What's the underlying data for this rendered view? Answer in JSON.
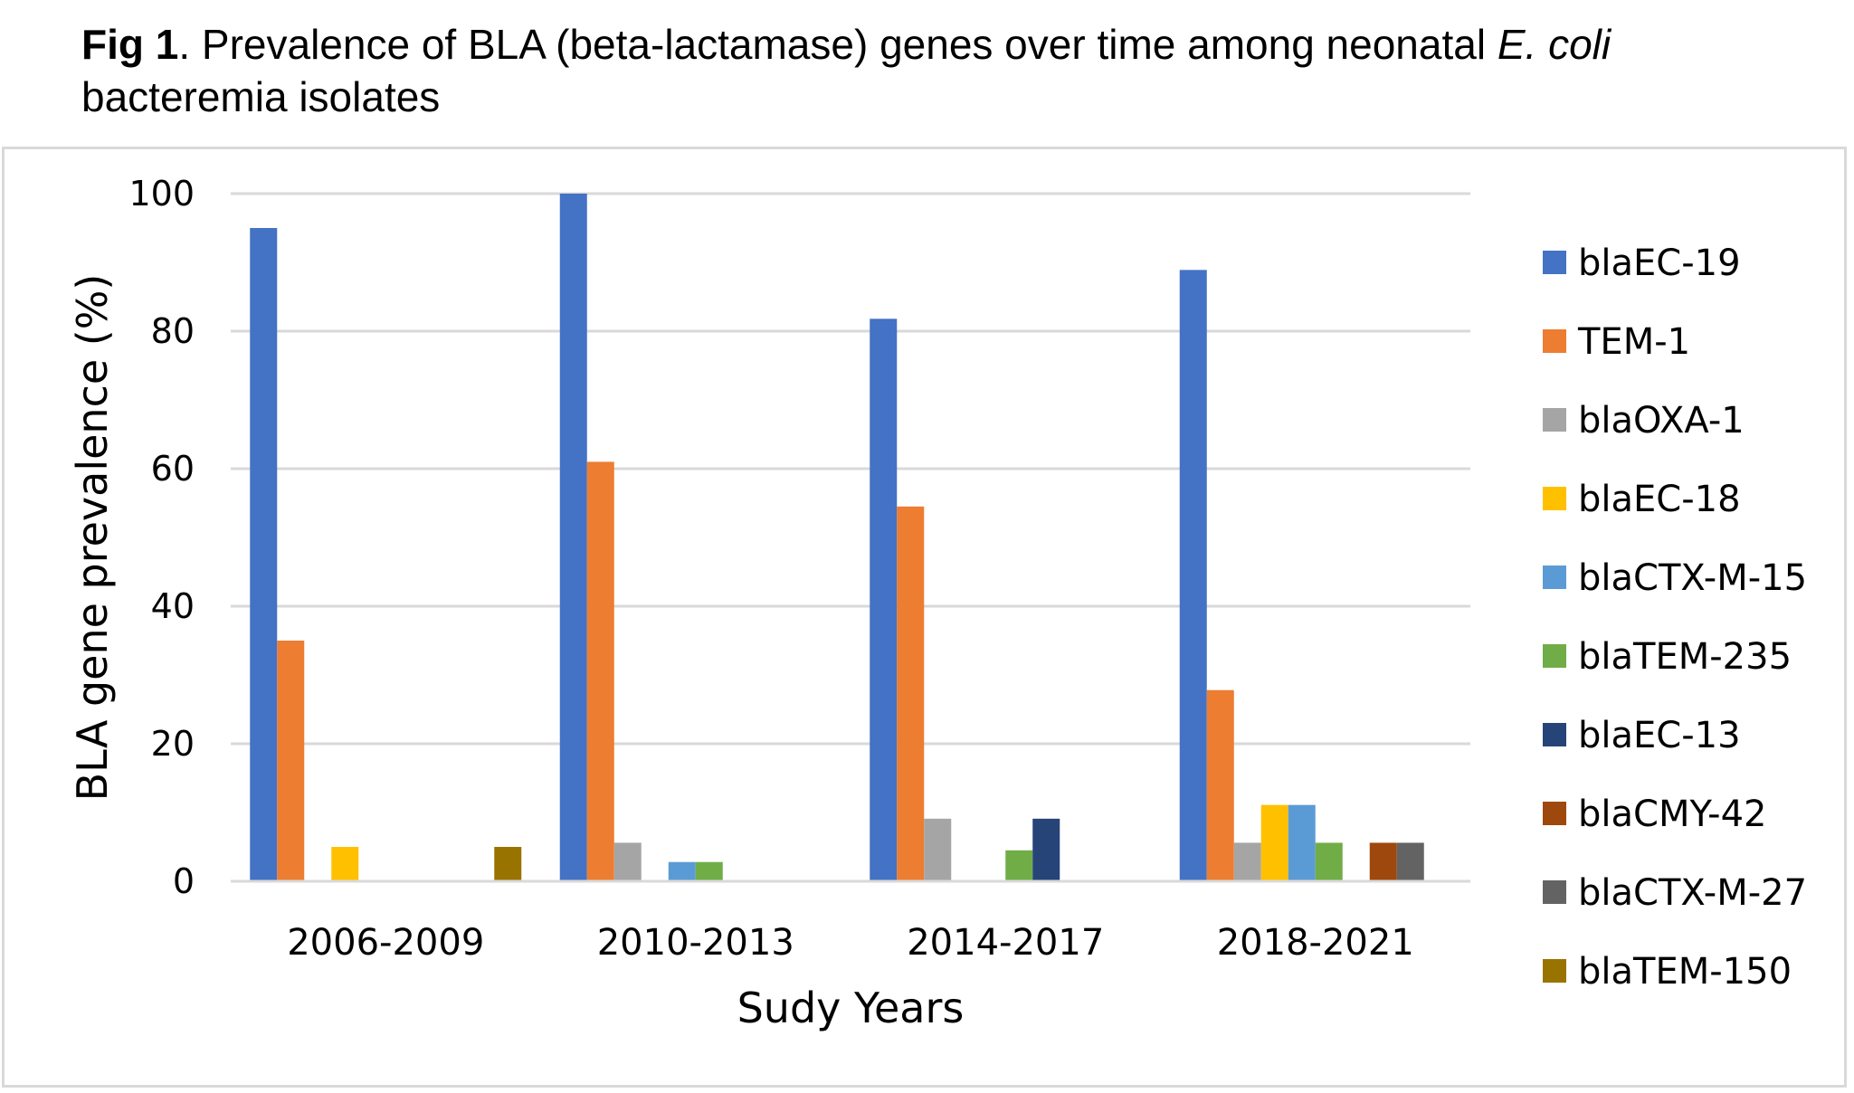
{
  "caption": {
    "label": "Fig 1",
    "text_before": ". Prevalence of BLA (beta-lactamase) genes over time among neonatal ",
    "organism": "E. coli",
    "text_after": " bacteremia isolates"
  },
  "chart_data": {
    "type": "bar",
    "title": "",
    "xlabel": "Sudy Years",
    "ylabel": "BLA gene prevalence (%)",
    "ylim": [
      0,
      100
    ],
    "yticks": [
      0,
      20,
      40,
      60,
      80,
      100
    ],
    "grid": true,
    "legend_position": "right",
    "categories": [
      "2006-2009",
      "2010-2013",
      "2014-2017",
      "2018-2021"
    ],
    "series": [
      {
        "name": "blaEC-19",
        "color": "#4472c4",
        "values": [
          95,
          100,
          81.8,
          88.9
        ]
      },
      {
        "name": "TEM-1",
        "color": "#ed7d31",
        "values": [
          35,
          61,
          54.5,
          27.8
        ]
      },
      {
        "name": "blaOXA-1",
        "color": "#a5a5a5",
        "values": [
          0,
          5.6,
          9.1,
          5.6
        ]
      },
      {
        "name": "blaEC-18",
        "color": "#ffc000",
        "values": [
          5,
          0,
          0,
          11.1
        ]
      },
      {
        "name": "blaCTX-M-15",
        "color": "#5b9bd5",
        "values": [
          0,
          2.8,
          0,
          11.1
        ]
      },
      {
        "name": "blaTEM-235",
        "color": "#70ad47",
        "values": [
          0,
          2.8,
          4.5,
          5.6
        ]
      },
      {
        "name": "blaEC-13",
        "color": "#264478",
        "values": [
          0,
          0,
          9.1,
          0
        ]
      },
      {
        "name": "blaCMY-42",
        "color": "#9e480e",
        "values": [
          0,
          0,
          0,
          5.6
        ]
      },
      {
        "name": "blaCTX-M-27",
        "color": "#636363",
        "values": [
          0,
          0,
          0,
          5.6
        ]
      },
      {
        "name": "blaTEM-150",
        "color": "#997300",
        "values": [
          5,
          0,
          0,
          0
        ]
      }
    ]
  }
}
